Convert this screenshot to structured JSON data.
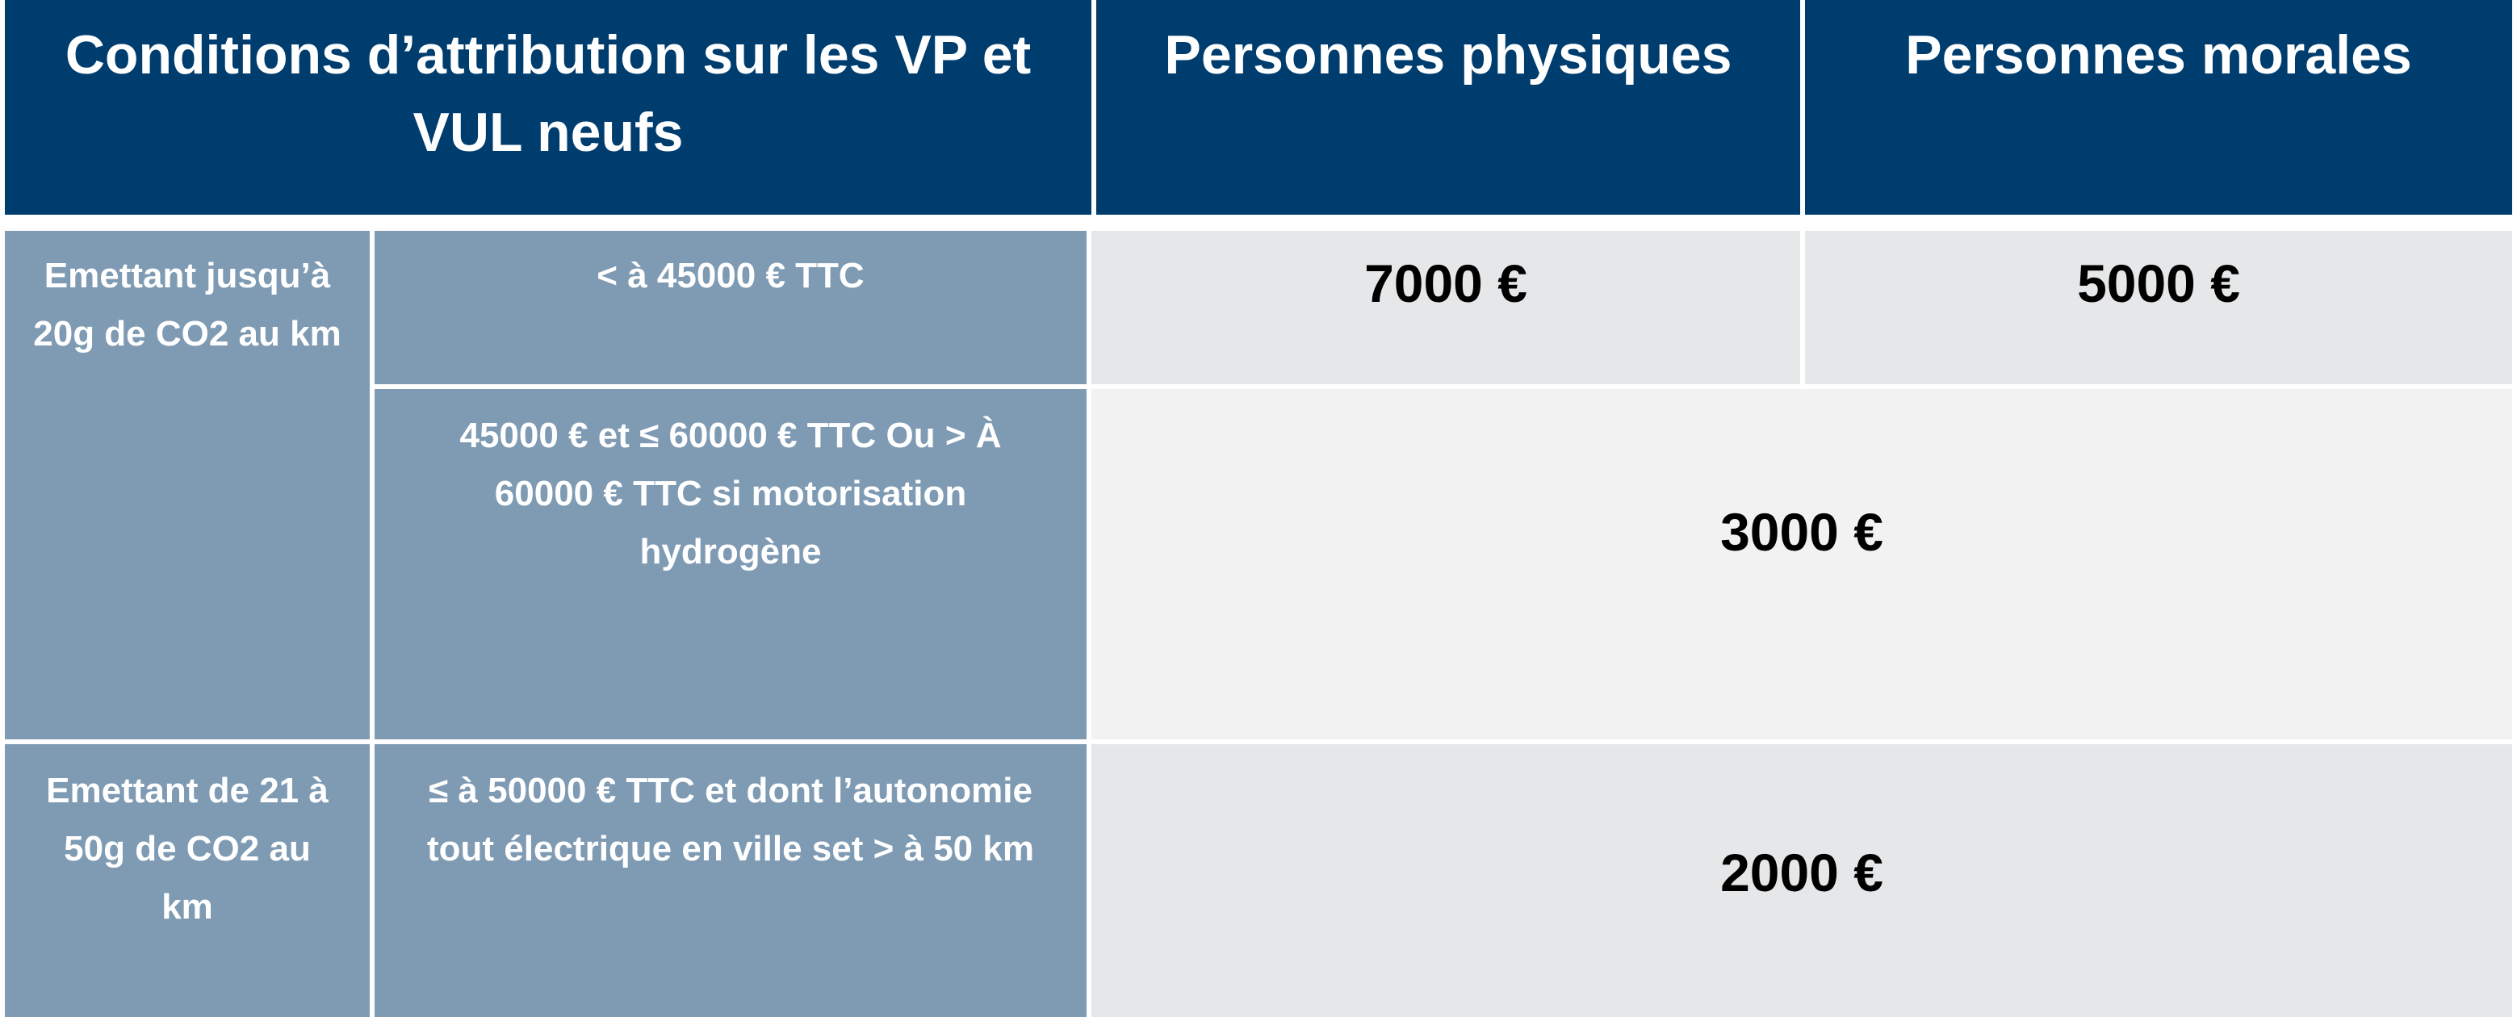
{
  "header": {
    "conditions": "Conditions d’attribution sur les VP et VUL neufs",
    "personnes_physiques": "Personnes physiques",
    "personnes_morales": "Personnes morales"
  },
  "group1": {
    "label": "Emettant jusqu’à 20g de CO2 au km",
    "row1": {
      "condition": "< à 45000 € TTC",
      "physiques": "7000 €",
      "morales": "5000 €"
    },
    "row2": {
      "condition": "45000 € et ≤ 60000 € TTC Ou > À 60000 € TTC si motorisation hydrogène",
      "amount": "3000 €"
    }
  },
  "group2": {
    "label": "Emettant de 21 à 50g de CO2 au km",
    "condition": "≤ à 50000 € TTC  et dont l’autonomie tout électrique en ville set > à 50 km",
    "amount": "2000 €"
  }
}
